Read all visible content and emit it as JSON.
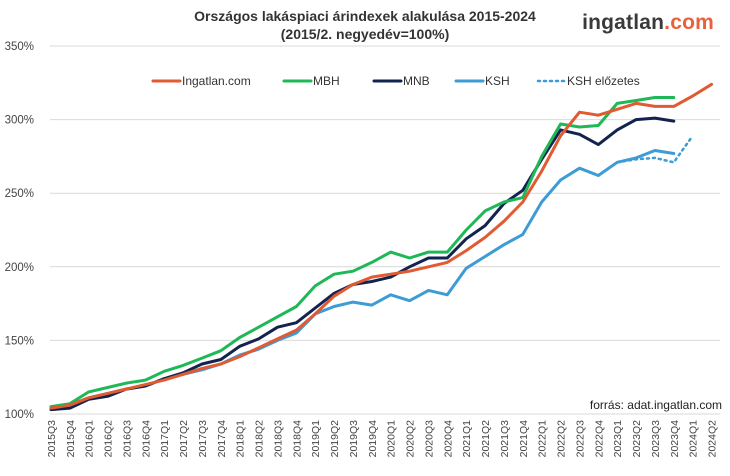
{
  "header": {
    "title_line1": "Országos lakáspiaci árindexek alakulása 2015-2024",
    "title_line2": "(2015/2. negyedév=100%)",
    "logo_part1": "ingatlan",
    "logo_part2": ".com",
    "source": "forrás: adat.ingatlan.com"
  },
  "chart_data": {
    "type": "line",
    "title": "Országos lakáspiaci árindexek alakulása 2015-2024",
    "subtitle": "(2015/2. negyedév=100%)",
    "ylim": [
      100,
      350
    ],
    "yticks": [
      "100%",
      "150%",
      "200%",
      "250%",
      "300%",
      "350%"
    ],
    "ytick_values": [
      100,
      150,
      200,
      250,
      300,
      350
    ],
    "grid": true,
    "legend_placement": "top",
    "x": [
      "2015Q3",
      "2015Q4",
      "2016Q1",
      "2016Q2",
      "2016Q3",
      "2016Q4",
      "2017Q1",
      "2017Q2",
      "2017Q3",
      "2017Q4",
      "2018Q1",
      "2018Q2",
      "2018Q3",
      "2018Q4",
      "2019Q1",
      "2019Q2",
      "2019Q3",
      "2019Q4",
      "2020Q1",
      "2020Q2",
      "2020Q3",
      "2020Q4",
      "2021Q1",
      "2021Q2",
      "2021Q3",
      "2021Q4",
      "2022Q1",
      "2022Q2",
      "2022Q3",
      "2022Q4",
      "2023Q1",
      "2023Q2",
      "2023Q3",
      "2023Q4",
      "2024Q1",
      "2024Q2"
    ],
    "series": [
      {
        "name": "Ingatlan.com",
        "color": "#e05a32",
        "dashed": false,
        "values": [
          104,
          106,
          111,
          114,
          117,
          120,
          123,
          127,
          131,
          134,
          139,
          145,
          151,
          157,
          168,
          180,
          188,
          193,
          195,
          197,
          200,
          203,
          211,
          220,
          231,
          244,
          265,
          289,
          305,
          303,
          307,
          311,
          309,
          309,
          316,
          324
        ]
      },
      {
        "name": "MBH",
        "color": "#1fb856",
        "dashed": false,
        "values": [
          105,
          107,
          115,
          118,
          121,
          123,
          129,
          133,
          138,
          143,
          152,
          159,
          166,
          173,
          187,
          195,
          197,
          203,
          210,
          206,
          210,
          210,
          225,
          238,
          244,
          247,
          275,
          297,
          295,
          296,
          311,
          313,
          315,
          315,
          null,
          null
        ]
      },
      {
        "name": "MNB",
        "color": "#13234f",
        "dashed": false,
        "values": [
          103,
          104,
          110,
          112,
          117,
          119,
          124,
          128,
          134,
          137,
          146,
          151,
          159,
          162,
          172,
          182,
          188,
          190,
          193,
          200,
          206,
          206,
          219,
          228,
          243,
          252,
          273,
          293,
          290,
          283,
          293,
          300,
          301,
          299,
          null,
          null
        ]
      },
      {
        "name": "KSH",
        "color": "#3d9bd6",
        "dashed": false,
        "values": [
          104,
          106,
          111,
          114,
          117,
          119,
          124,
          127,
          130,
          134,
          140,
          144,
          150,
          155,
          168,
          173,
          176,
          174,
          181,
          177,
          184,
          181,
          199,
          207,
          215,
          222,
          244,
          259,
          267,
          262,
          271,
          274,
          279,
          277,
          null,
          null
        ]
      },
      {
        "name": "KSH előzetes",
        "color": "#3d9bd6",
        "dashed": true,
        "values": [
          null,
          null,
          null,
          null,
          null,
          null,
          null,
          null,
          null,
          null,
          null,
          null,
          null,
          null,
          null,
          null,
          null,
          null,
          null,
          null,
          null,
          null,
          null,
          null,
          null,
          null,
          null,
          null,
          null,
          null,
          271,
          273,
          274,
          271,
          289,
          null
        ]
      }
    ]
  }
}
